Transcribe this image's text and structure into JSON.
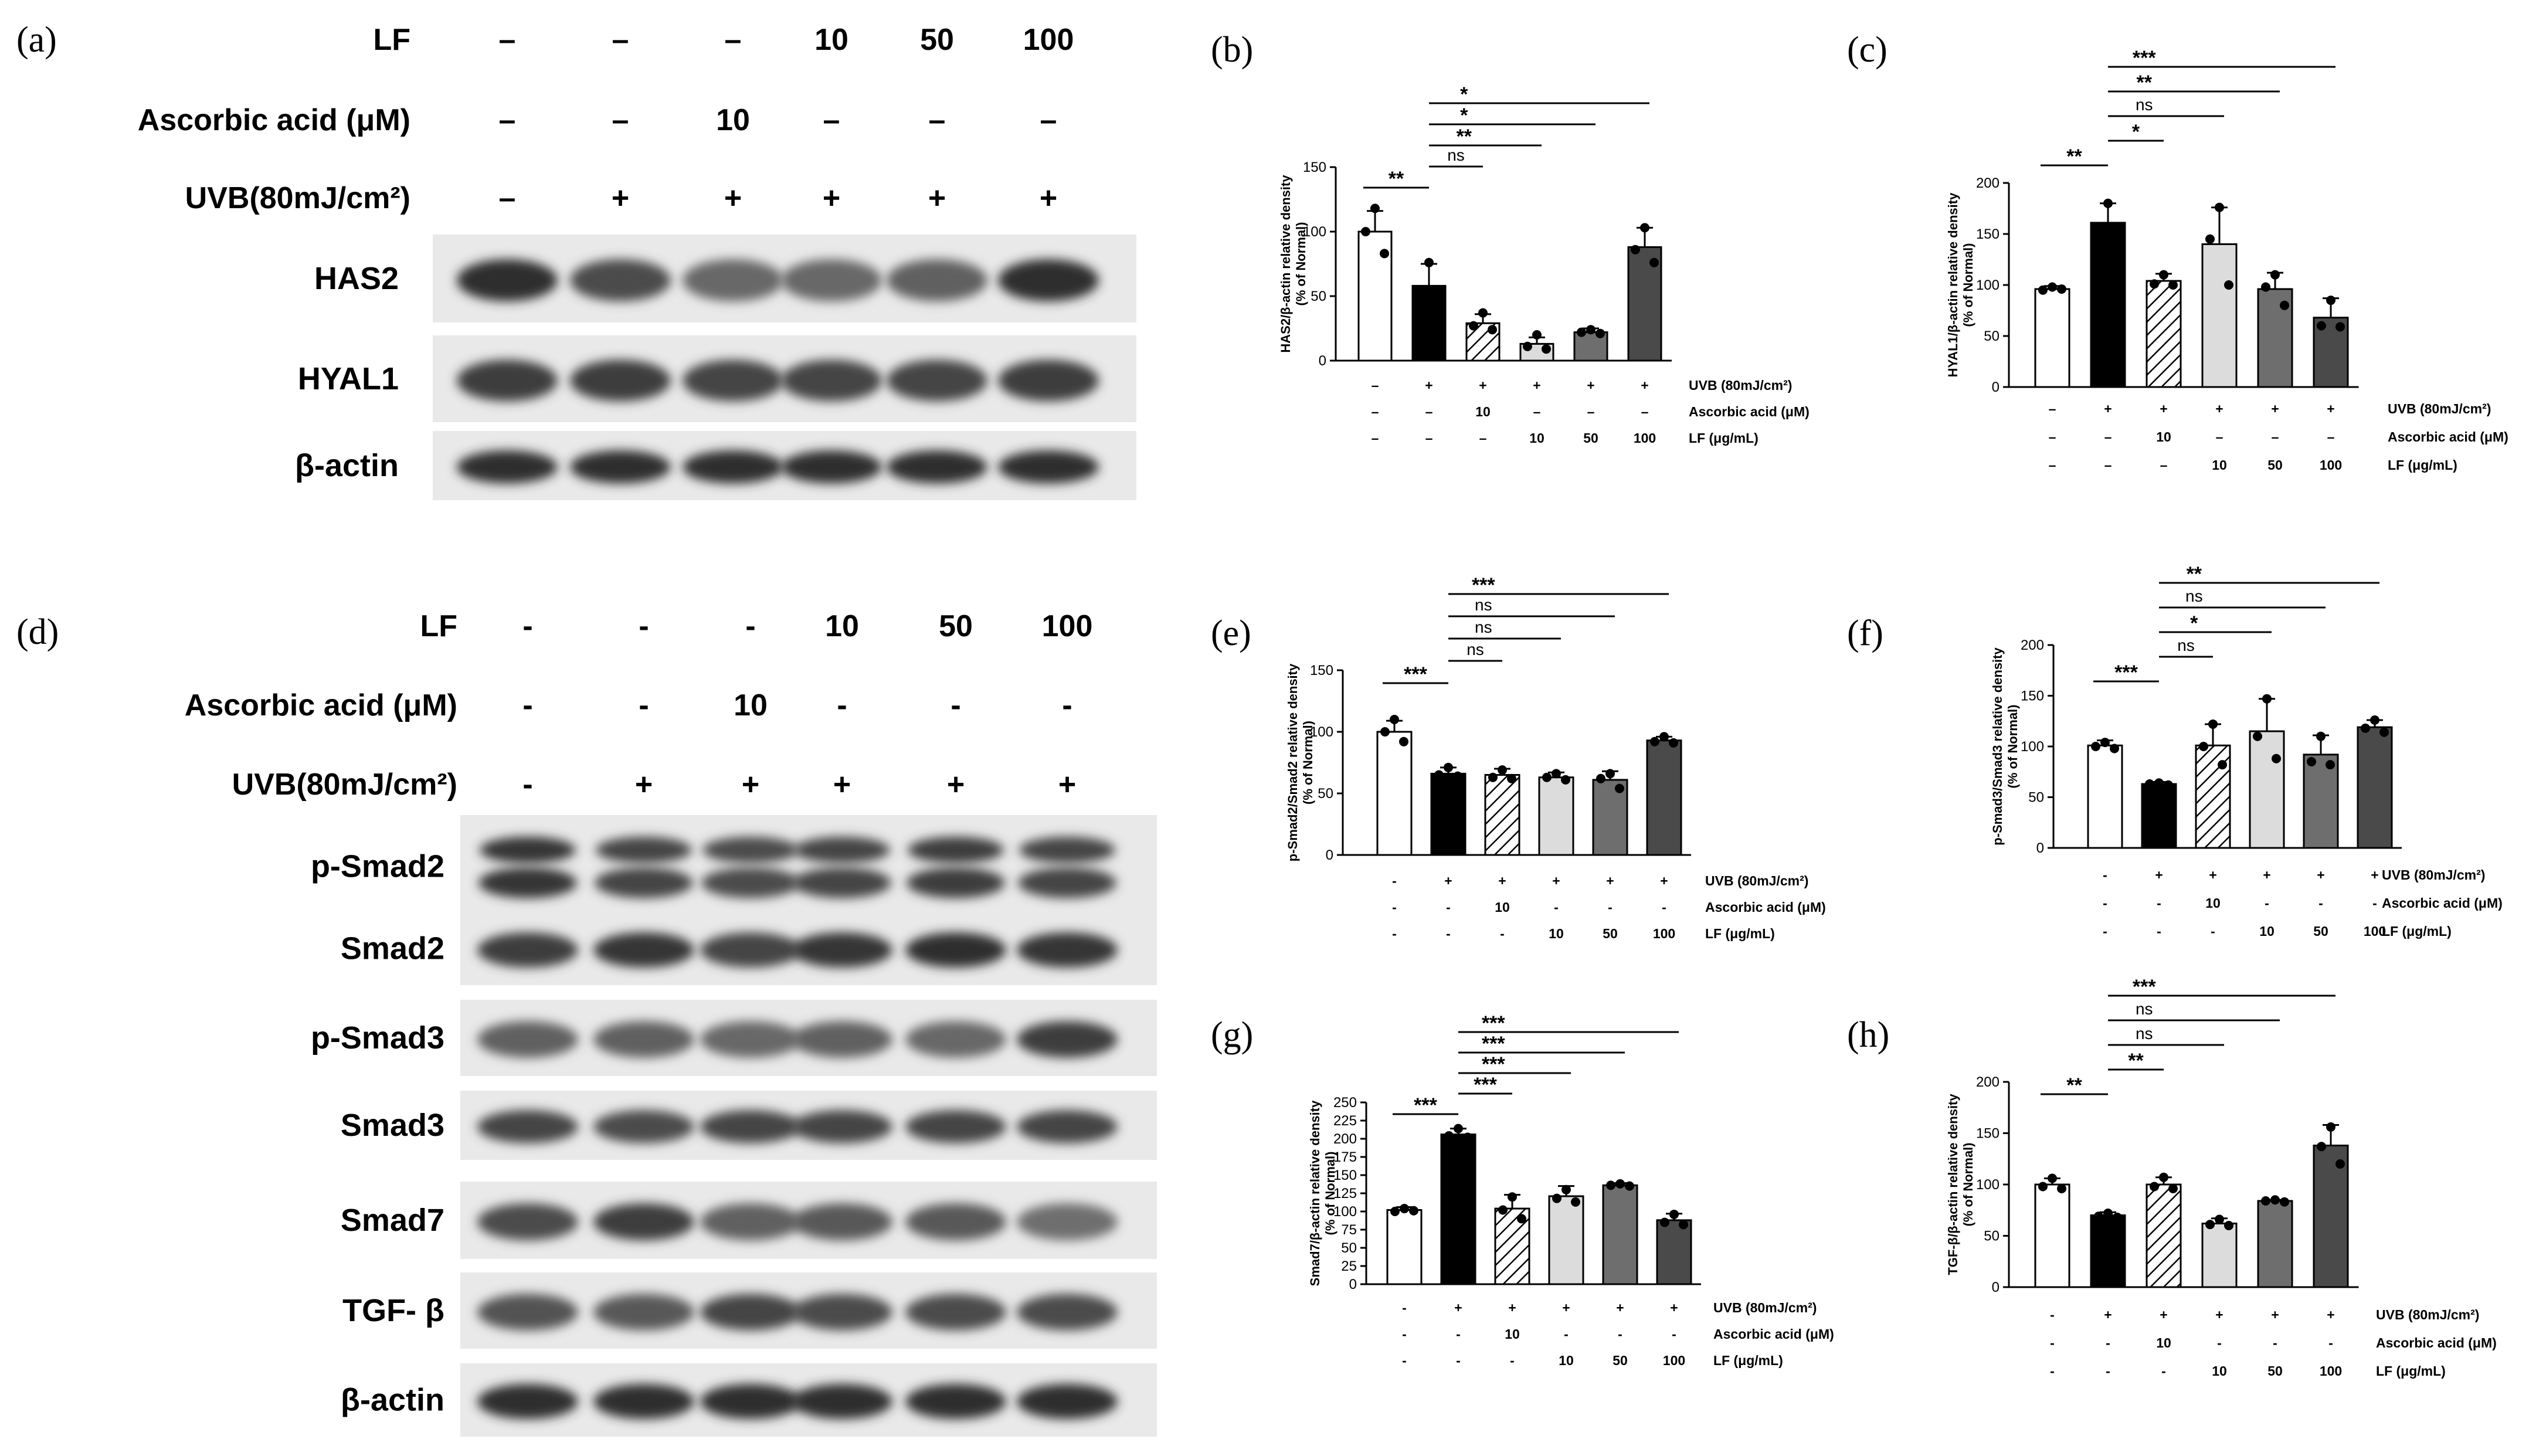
{
  "blot_top": {
    "panel_label": "(a)",
    "conditions": [
      {
        "name": "LF",
        "values": [
          "–",
          "–",
          "–",
          "10",
          "50",
          "100"
        ]
      },
      {
        "name": "Ascorbic acid (μM)",
        "values": [
          "–",
          "–",
          "10",
          "–",
          "–",
          "–"
        ]
      },
      {
        "name": "UVB(80mJ/cm²)",
        "values": [
          "–",
          "+",
          "+",
          "+",
          "+",
          "+"
        ]
      }
    ],
    "bands": [
      "HAS2",
      "HYAL1",
      "β-actin"
    ]
  },
  "blot_bottom": {
    "panel_label": "(d)",
    "conditions": [
      {
        "name": "LF",
        "values": [
          "-",
          "-",
          "-",
          "10",
          "50",
          "100"
        ]
      },
      {
        "name": "Ascorbic acid (μM)",
        "values": [
          "-",
          "-",
          "10",
          "-",
          "-",
          "-"
        ]
      },
      {
        "name": "UVB(80mJ/cm²)",
        "values": [
          "-",
          "+",
          "+",
          "+",
          "+",
          "+"
        ]
      }
    ],
    "bands": [
      "p-Smad2",
      "Smad2",
      "p-Smad3",
      "Smad3",
      "Smad7",
      "TGF- β",
      "β-actin"
    ]
  },
  "colors": {
    "bar_fills": [
      "#ffffff",
      "#000000",
      "hatch",
      "#dcdcdc",
      "#6e6e6e",
      "#4a4a4a"
    ],
    "axis": "#000000"
  },
  "chart_data": [
    {
      "panel": "(b)",
      "type": "bar",
      "ylabel": "HAS2/β-actin relative density\n(% of Normal)",
      "ylim": [
        0,
        150
      ],
      "yticks": [
        0,
        50,
        100,
        150
      ],
      "values": [
        100,
        58,
        29,
        13,
        22,
        88
      ],
      "errors": [
        16,
        17,
        7,
        5,
        3,
        15
      ],
      "points": [
        [
          118,
          100,
          83
        ],
        [
          76,
          52,
          46
        ],
        [
          37,
          27,
          24
        ],
        [
          20,
          11,
          9
        ],
        [
          24,
          22,
          21
        ],
        [
          103,
          86,
          76
        ]
      ],
      "rows": [
        {
          "label": "UVB (80mJ/cm²)",
          "values": [
            "–",
            "+",
            "+",
            "+",
            "+",
            "+"
          ]
        },
        {
          "label": "Ascorbic acid (μM)",
          "values": [
            "–",
            "–",
            "10",
            "–",
            "–",
            "–"
          ]
        },
        {
          "label": "LF (μg/mL)",
          "values": [
            "–",
            "–",
            "–",
            "10",
            "50",
            "100"
          ]
        }
      ],
      "sig": [
        {
          "from": 0,
          "to": 1,
          "label": "**"
        },
        {
          "from": 1,
          "to": 2,
          "label": "ns"
        },
        {
          "from": 1,
          "to": 3,
          "label": "**"
        },
        {
          "from": 1,
          "to": 4,
          "label": "*"
        },
        {
          "from": 1,
          "to": 5,
          "label": "*"
        }
      ]
    },
    {
      "panel": "(c)",
      "type": "bar",
      "ylabel": "HYAL1/β-actin relative density\n(% of Normal)",
      "ylim": [
        0,
        200
      ],
      "yticks": [
        0,
        50,
        100,
        150,
        200
      ],
      "values": [
        96,
        161,
        104,
        140,
        96,
        68
      ],
      "errors": [
        3,
        19,
        7,
        36,
        16,
        19
      ],
      "points": [
        [
          98,
          95,
          96
        ],
        [
          180,
          153,
          150
        ],
        [
          110,
          101,
          100
        ],
        [
          176,
          145,
          100
        ],
        [
          110,
          98,
          80
        ],
        [
          85,
          60,
          59
        ]
      ],
      "rows": [
        {
          "label": "UVB (80mJ/cm²)",
          "values": [
            "–",
            "+",
            "+",
            "+",
            "+",
            "+"
          ]
        },
        {
          "label": "Ascorbic acid (μM)",
          "values": [
            "–",
            "–",
            "10",
            "–",
            "–",
            "–"
          ]
        },
        {
          "label": "LF (μg/mL)",
          "values": [
            "–",
            "–",
            "–",
            "10",
            "50",
            "100"
          ]
        }
      ],
      "sig": [
        {
          "from": 0,
          "to": 1,
          "label": "**"
        },
        {
          "from": 1,
          "to": 2,
          "label": "*"
        },
        {
          "from": 1,
          "to": 3,
          "label": "ns"
        },
        {
          "from": 1,
          "to": 4,
          "label": "**"
        },
        {
          "from": 1,
          "to": 5,
          "label": "***"
        }
      ]
    },
    {
      "panel": "(e)",
      "type": "bar",
      "ylabel": "p-Smad2/Smad2 relative density\n(% of Normal)",
      "ylim": [
        0,
        150
      ],
      "yticks": [
        0,
        50,
        100,
        150
      ],
      "values": [
        100,
        66,
        65,
        63,
        61,
        93
      ],
      "errors": [
        9,
        5,
        5,
        4,
        7,
        3
      ],
      "points": [
        [
          110,
          100,
          92
        ],
        [
          71,
          65,
          64
        ],
        [
          69,
          63,
          62
        ],
        [
          66,
          63,
          61
        ],
        [
          66,
          62,
          54
        ],
        [
          96,
          92,
          91
        ]
      ],
      "rows": [
        {
          "label": "UVB (80mJ/cm²)",
          "values": [
            "-",
            "+",
            "+",
            "+",
            "+",
            "+"
          ]
        },
        {
          "label": "Ascorbic acid (μM)",
          "values": [
            "-",
            "-",
            "10",
            "-",
            "-",
            "-"
          ]
        },
        {
          "label": "LF (μg/mL)",
          "values": [
            "-",
            "-",
            "-",
            "10",
            "50",
            "100"
          ]
        }
      ],
      "sig": [
        {
          "from": 0,
          "to": 1,
          "label": "***"
        },
        {
          "from": 1,
          "to": 2,
          "label": "ns"
        },
        {
          "from": 1,
          "to": 3,
          "label": "ns"
        },
        {
          "from": 1,
          "to": 4,
          "label": "ns"
        },
        {
          "from": 1,
          "to": 5,
          "label": "***"
        }
      ]
    },
    {
      "panel": "(f)",
      "type": "bar",
      "ylabel": "p-Smad3/Smad3 relative density\n(% of Normal)",
      "ylim": [
        0,
        200
      ],
      "yticks": [
        0,
        50,
        100,
        150,
        200
      ],
      "values": [
        101,
        63,
        101,
        115,
        92,
        119
      ],
      "errors": [
        5,
        2,
        21,
        32,
        19,
        7
      ],
      "points": [
        [
          104,
          100,
          98
        ],
        [
          64,
          63,
          62
        ],
        [
          122,
          100,
          82
        ],
        [
          147,
          110,
          88
        ],
        [
          110,
          85,
          82
        ],
        [
          126,
          118,
          114
        ]
      ],
      "rows": [
        {
          "label": "UVB (80mJ/cm²)",
          "values": [
            "-",
            "+",
            "+",
            "+",
            "+",
            "+"
          ]
        },
        {
          "label": "Ascorbic acid (μM)",
          "values": [
            "-",
            "-",
            "10",
            "-",
            "-",
            "-"
          ]
        },
        {
          "label": "LF (μg/mL)",
          "values": [
            "-",
            "-",
            "-",
            "10",
            "50",
            "100"
          ]
        }
      ],
      "sig": [
        {
          "from": 0,
          "to": 1,
          "label": "***"
        },
        {
          "from": 1,
          "to": 2,
          "label": "ns"
        },
        {
          "from": 1,
          "to": 3,
          "label": "*"
        },
        {
          "from": 1,
          "to": 4,
          "label": "ns"
        },
        {
          "from": 1,
          "to": 5,
          "label": "**"
        }
      ]
    },
    {
      "panel": "(g)",
      "type": "bar",
      "ylabel": "Smad7/β-actin relative density\n(% of Normal)",
      "ylim": [
        0,
        250
      ],
      "yticks": [
        0,
        25,
        50,
        75,
        100,
        125,
        150,
        175,
        200,
        225,
        250
      ],
      "values": [
        102,
        206,
        104,
        121,
        136,
        88
      ],
      "errors": [
        4,
        8,
        19,
        14,
        3,
        9
      ],
      "points": [
        [
          104,
          100,
          101
        ],
        [
          214,
          204,
          202
        ],
        [
          120,
          102,
          90
        ],
        [
          130,
          118,
          113
        ],
        [
          138,
          136,
          135
        ],
        [
          96,
          85,
          82
        ]
      ],
      "rows": [
        {
          "label": "UVB (80mJ/cm²)",
          "values": [
            "-",
            "+",
            "+",
            "+",
            "+",
            "+"
          ]
        },
        {
          "label": "Ascorbic acid (μM)",
          "values": [
            "-",
            "-",
            "10",
            "-",
            "-",
            "-"
          ]
        },
        {
          "label": "LF (μg/mL)",
          "values": [
            "-",
            "-",
            "-",
            "10",
            "50",
            "100"
          ]
        }
      ],
      "sig": [
        {
          "from": 0,
          "to": 1,
          "label": "***"
        },
        {
          "from": 1,
          "to": 2,
          "label": "***"
        },
        {
          "from": 1,
          "to": 3,
          "label": "***"
        },
        {
          "from": 1,
          "to": 4,
          "label": "***"
        },
        {
          "from": 1,
          "to": 5,
          "label": "***"
        }
      ]
    },
    {
      "panel": "(h)",
      "type": "bar",
      "ylabel": "TGF-β/β-actin relative density\n(% of Normal)",
      "ylim": [
        0,
        200
      ],
      "yticks": [
        0,
        50,
        100,
        150,
        200
      ],
      "values": [
        100,
        70,
        100,
        62,
        84,
        138
      ],
      "errors": [
        6,
        3,
        7,
        5,
        1,
        20
      ],
      "points": [
        [
          106,
          98,
          96
        ],
        [
          72,
          69,
          68
        ],
        [
          107,
          98,
          96
        ],
        [
          66,
          61,
          60
        ],
        [
          85,
          84,
          83
        ],
        [
          156,
          137,
          120
        ]
      ],
      "rows": [
        {
          "label": "UVB (80mJ/cm²)",
          "values": [
            "-",
            "+",
            "+",
            "+",
            "+",
            "+"
          ]
        },
        {
          "label": "Ascorbic acid (μM)",
          "values": [
            "-",
            "-",
            "10",
            "-",
            "-",
            "-"
          ]
        },
        {
          "label": "LF (μg/mL)",
          "values": [
            "-",
            "-",
            "-",
            "10",
            "50",
            "100"
          ]
        }
      ],
      "sig": [
        {
          "from": 0,
          "to": 1,
          "label": "**"
        },
        {
          "from": 1,
          "to": 2,
          "label": "**"
        },
        {
          "from": 1,
          "to": 3,
          "label": "ns"
        },
        {
          "from": 1,
          "to": 4,
          "label": "ns"
        },
        {
          "from": 1,
          "to": 5,
          "label": "***"
        }
      ]
    }
  ]
}
